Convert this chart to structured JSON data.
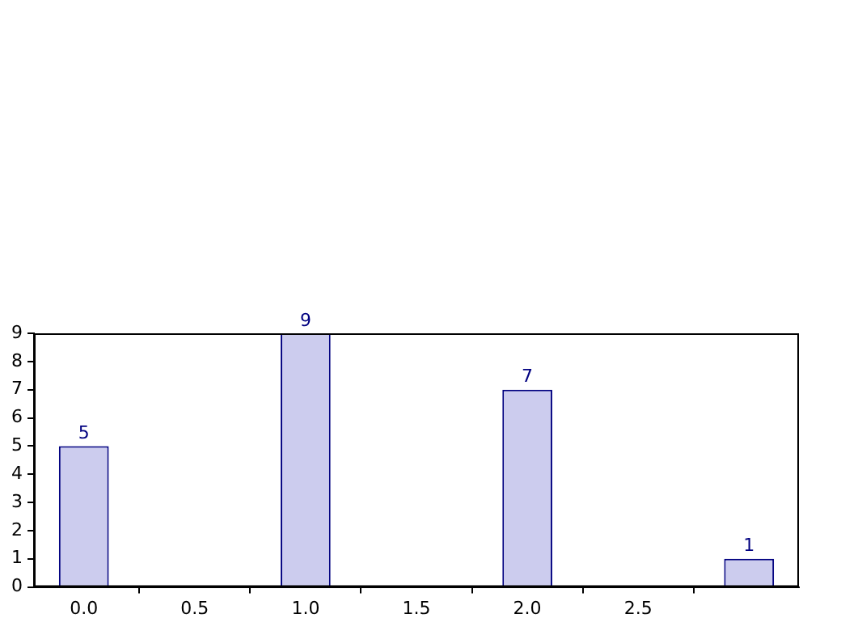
{
  "chart_data": {
    "type": "bar",
    "x": [
      0,
      1,
      2,
      3
    ],
    "values": [
      5,
      9,
      7,
      1
    ],
    "color": "#ccccee",
    "xlim": [
      -0.225,
      3.225
    ],
    "xticks": [
      {
        "value": 0,
        "label": "0.0"
      },
      {
        "value": 0.5,
        "label": "0.5"
      },
      {
        "value": 1,
        "label": "1.0"
      },
      {
        "value": 1.5,
        "label": "1.5"
      },
      {
        "value": 2,
        "label": "2.0"
      },
      {
        "value": 2.5,
        "label": "2.5"
      }
    ],
    "ylim": [
      0,
      9
    ],
    "yticks": [
      0,
      1,
      2,
      3,
      4,
      5,
      6,
      7,
      8,
      9
    ],
    "grid": false,
    "data_labels": true
  }
}
